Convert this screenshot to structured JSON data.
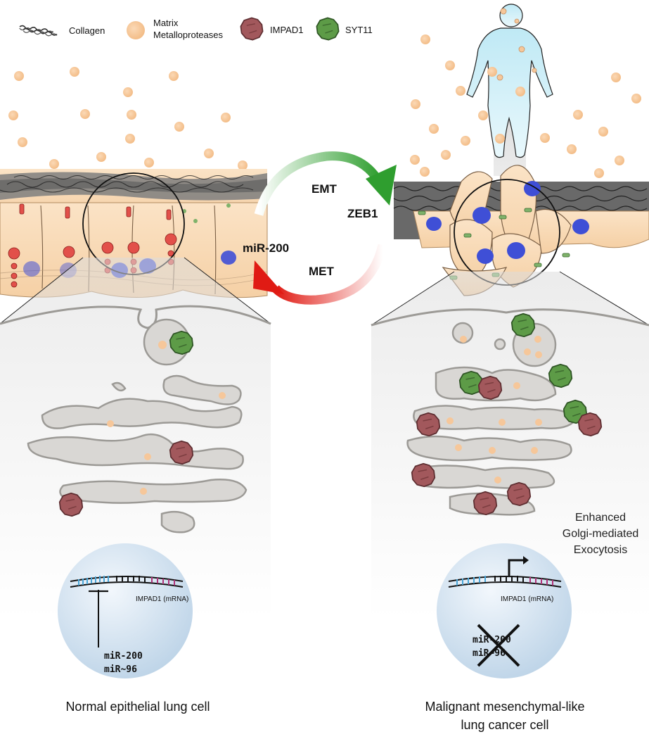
{
  "legend": {
    "collagen": "Collagen",
    "mmp_line1": "Matrix",
    "mmp_line2": "Metalloproteases",
    "impad1": "IMPAD1",
    "syt11": "SYT11"
  },
  "cycle": {
    "emt": "EMT",
    "zeb1": "ZEB1",
    "mir200": "miR-200",
    "met": "MET"
  },
  "right_note": {
    "line1": "Enhanced",
    "line2": "Golgi-mediated",
    "line3": "Exocytosis"
  },
  "nucleus_left": {
    "mrna": "IMPAD1 (mRNA)",
    "mir1": "miR-200",
    "mir2": "miR~96"
  },
  "nucleus_right": {
    "mrna": "IMPAD1 (mRNA)",
    "mir1": "miR-200",
    "mir2": "miR~96"
  },
  "captions": {
    "left": "Normal epithelial lung cell",
    "right_line1": "Malignant mesenchymal-like",
    "right_line2": "lung cancer cell"
  },
  "colors": {
    "mmp": "#f6c79a",
    "impad1": "#a85a5e",
    "syt11": "#5c9a48",
    "emt_arrow": "#3aa536",
    "met_arrow": "#e0251c",
    "golgi_fill": "#d9d7d4",
    "golgi_stroke": "#9c9a96",
    "cell_fill": "#f8d9b3",
    "nucleus_blue": "#3f4fd6"
  }
}
